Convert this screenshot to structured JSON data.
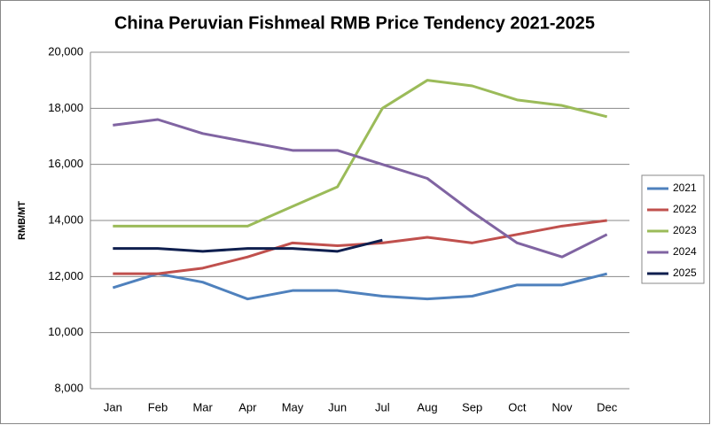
{
  "chart_data": {
    "type": "line",
    "title": "China Peruvian Fishmeal RMB Price Tendency 2021-2025",
    "y_label": "RMB/MT",
    "categories": [
      "Jan",
      "Feb",
      "Mar",
      "Apr",
      "May",
      "Jun",
      "Jul",
      "Aug",
      "Sep",
      "Oct",
      "Nov",
      "Dec"
    ],
    "series": [
      {
        "name": "2021",
        "color": "#4f81bd",
        "values": [
          11600,
          12100,
          11800,
          11200,
          11500,
          11500,
          11300,
          11200,
          11300,
          11700,
          11700,
          12100
        ]
      },
      {
        "name": "2022",
        "color": "#c0504d",
        "values": [
          12100,
          12100,
          12300,
          12700,
          13200,
          13100,
          13200,
          13400,
          13200,
          13500,
          13800,
          14000
        ]
      },
      {
        "name": "2023",
        "color": "#9bbb59",
        "values": [
          13800,
          13800,
          13800,
          13800,
          14500,
          15200,
          18000,
          19000,
          18800,
          18300,
          18100,
          17700
        ]
      },
      {
        "name": "2024",
        "color": "#8064a2",
        "values": [
          17400,
          17600,
          17100,
          16800,
          16500,
          16500,
          16000,
          15500,
          14300,
          13200,
          12700,
          13500
        ]
      },
      {
        "name": "2025",
        "color": "#0f1f4f",
        "values": [
          13000,
          13000,
          12900,
          13000,
          13000,
          12900,
          13300,
          null,
          null,
          null,
          null,
          null
        ]
      }
    ],
    "ylim": [
      8000,
      20000
    ],
    "yticks": [
      {
        "value": 8000,
        "label": "8,000"
      },
      {
        "value": 10000,
        "label": "10,000"
      },
      {
        "value": 12000,
        "label": "12,000"
      },
      {
        "value": 14000,
        "label": "14,000"
      },
      {
        "value": 16000,
        "label": "16,000"
      },
      {
        "value": 18000,
        "label": "18,000"
      },
      {
        "value": 20000,
        "label": "20,000"
      }
    ],
    "grid": true,
    "legend": "right"
  }
}
